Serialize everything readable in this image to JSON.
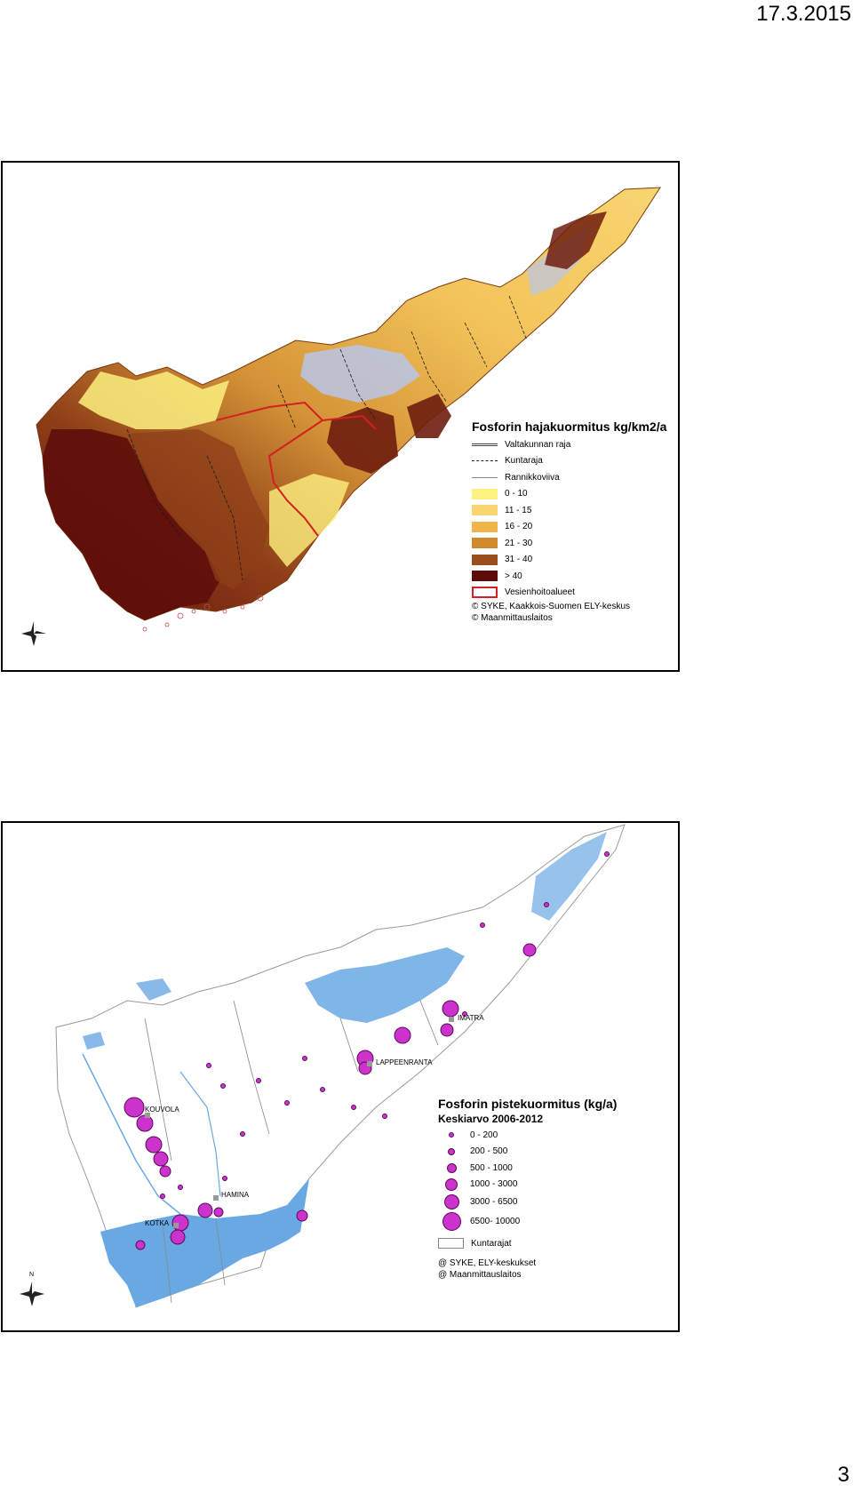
{
  "header": {
    "date": "17.3.2015"
  },
  "footer": {
    "page_number": "3"
  },
  "map1": {
    "legend_title": "Fosforin hajakuormitus kg/km2/a",
    "line_items": [
      {
        "label": "Valtakunnan raja",
        "style": "double-dash"
      },
      {
        "label": "Kuntaraja",
        "style": "dash-dot"
      },
      {
        "label": "Rannikkoviiva",
        "style": "thin"
      }
    ],
    "classes": [
      {
        "label": "0 - 10",
        "color": "#fdf17f"
      },
      {
        "label": "11 - 15",
        "color": "#f8d570"
      },
      {
        "label": "16 - 20",
        "color": "#eeb64a"
      },
      {
        "label": "21 - 30",
        "color": "#cf8a2c"
      },
      {
        "label": "31 - 40",
        "color": "#9a4e1a"
      },
      {
        "label": "> 40",
        "color": "#5e0d0a"
      }
    ],
    "area_item": {
      "label": "Vesienhoitoalueet",
      "color": "#d42020"
    },
    "credits": [
      "© SYKE, Kaakkois-Suomen ELY-keskus",
      "© Maanmittauslaitos"
    ],
    "compass": {
      "north": "N",
      "south": "S",
      "east": "E",
      "west": "W"
    }
  },
  "map2": {
    "legend_title": "Fosforin pistekuormitus (kg/a)",
    "legend_subtitle": "Keskiarvo 2006-2012",
    "size_classes": [
      {
        "label": "0 - 200",
        "diameter": 4
      },
      {
        "label": "200 - 500",
        "diameter": 6
      },
      {
        "label": "500 - 1000",
        "diameter": 9
      },
      {
        "label": "1000 - 3000",
        "diameter": 12
      },
      {
        "label": "3000 - 6500",
        "diameter": 15
      },
      {
        "label": "6500- 10000",
        "diameter": 19
      }
    ],
    "municipality_item": {
      "label": "Kuntarajat"
    },
    "credits": [
      "@ SYKE, ELY-keskukset",
      "@ Maanmittauslaitos"
    ],
    "cities": [
      "KOUVOLA",
      "LAPPEENRANTA",
      "IMATRA",
      "HAMINA",
      "KOTKA"
    ],
    "compass": {
      "north": "N"
    },
    "colors": {
      "water": "#6aa8e4",
      "dot": "#cc33cc"
    }
  }
}
